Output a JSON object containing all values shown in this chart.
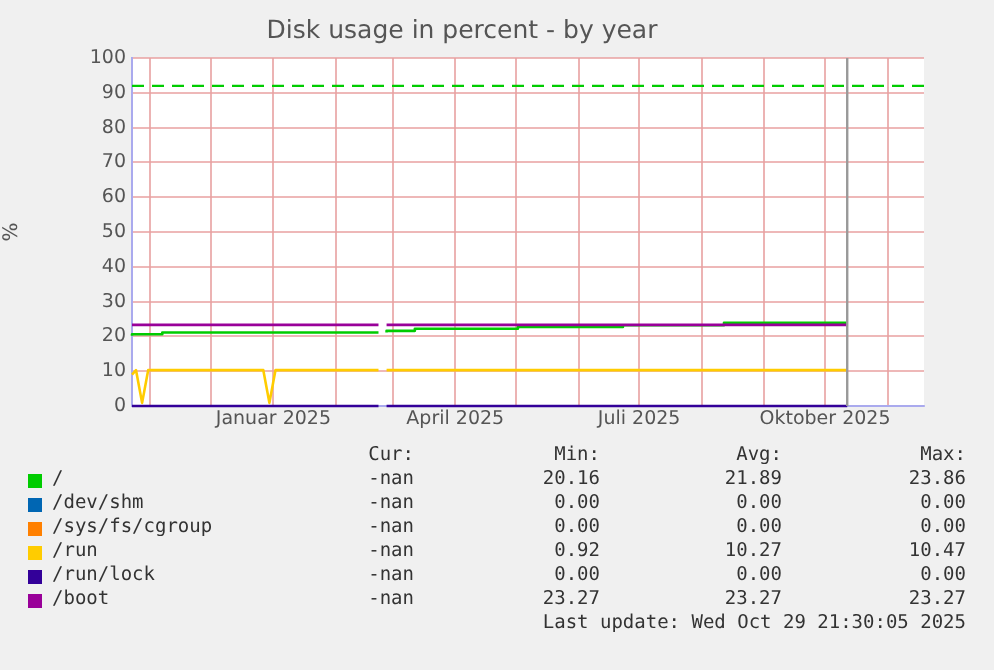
{
  "chart_data": {
    "type": "step",
    "title": "Disk usage in percent - by year",
    "ylabel": "%",
    "xlim": [
      "2024-10-23",
      "2025-11-19"
    ],
    "xticks": [
      {
        "value": "2024-11-01",
        "label": null
      },
      {
        "value": "2024-12-01",
        "label": null
      },
      {
        "value": "2025-01-01",
        "label": "Januar 2025"
      },
      {
        "value": "2025-02-01",
        "label": null
      },
      {
        "value": "2025-03-01",
        "label": null
      },
      {
        "value": "2025-04-01",
        "label": "April 2025"
      },
      {
        "value": "2025-05-01",
        "label": null
      },
      {
        "value": "2025-06-01",
        "label": null
      },
      {
        "value": "2025-07-01",
        "label": "Juli 2025"
      },
      {
        "value": "2025-08-01",
        "label": null
      },
      {
        "value": "2025-09-01",
        "label": null
      },
      {
        "value": "2025-10-01",
        "label": "Oktober 2025"
      },
      {
        "value": "2025-11-01",
        "label": null
      }
    ],
    "ylim": [
      0,
      100
    ],
    "yticks": [
      0,
      10,
      20,
      30,
      40,
      50,
      60,
      70,
      80,
      90,
      100
    ],
    "grid": true,
    "legend": "bottom",
    "ref_lines": [
      {
        "axis": "y",
        "value": 92,
        "label": null,
        "color": "#00cc00",
        "line_style": "dashed"
      },
      {
        "axis": "x",
        "value": "2025-10-12",
        "label": null,
        "color": "#999999",
        "line_style": "solid"
      }
    ],
    "series": [
      {
        "name": "/",
        "color": "#00cc00",
        "x": [
          "2024-10-23",
          "2024-11-07",
          "2025-01-20",
          "2025-02-22",
          "2025-02-24",
          "2025-02-26",
          "2025-03-12",
          "2025-05-02",
          "2025-06-23",
          "2025-08-12",
          "2025-10-02",
          "2025-10-12"
        ],
        "values": [
          20.2,
          20.6,
          21.1,
          21.1,
          null,
          21.1,
          21.6,
          22.2,
          22.7,
          23.2,
          23.9,
          23.9
        ]
      },
      {
        "name": "/dev/shm",
        "color": "#0066b3"
      },
      {
        "name": "/sys/fs/cgroup",
        "color": "#ff8000"
      },
      {
        "name": "/run",
        "type": "line",
        "color": "#ffcc00",
        "x": [
          "2024-10-23",
          "2024-10-25",
          "2024-10-28",
          "2024-10-31",
          "2024-12-27",
          "2024-12-30",
          "2025-01-02",
          "2025-02-22",
          "2025-02-24",
          "2025-02-26",
          "2025-10-12"
        ],
        "values": [
          9,
          10.3,
          0.9,
          10.3,
          10.3,
          0.9,
          10.3,
          10.3,
          null,
          10.3,
          10.3
        ]
      },
      {
        "name": "/run/lock",
        "color": "#330099",
        "x": [
          "2024-10-23",
          "2025-02-22",
          "2025-02-24",
          "2025-02-26",
          "2025-10-12"
        ],
        "values": [
          0,
          0,
          null,
          0,
          0
        ]
      },
      {
        "name": "/boot",
        "color": "#990099",
        "x": [
          "2024-10-23",
          "2025-02-22",
          "2025-02-24",
          "2025-02-26",
          "2025-10-12"
        ],
        "values": [
          23.3,
          23.3,
          null,
          23.3,
          23.3
        ]
      }
    ],
    "annotations": [
      "Cur:",
      "Min:",
      "Avg:",
      "Max:",
      "-nan",
      "20.16",
      "21.89",
      "23.86",
      "-nan",
      "0.00",
      "0.00",
      "0.00",
      "-nan",
      "0.00",
      "0.00",
      "0.00",
      "-nan",
      "0.92",
      "10.27",
      "10.47",
      "-nan",
      "0.00",
      "0.00",
      "0.00",
      "-nan",
      "23.27",
      "23.27",
      "23.27",
      "Last update: Wed Oct 29 21:30:05 2025"
    ]
  }
}
